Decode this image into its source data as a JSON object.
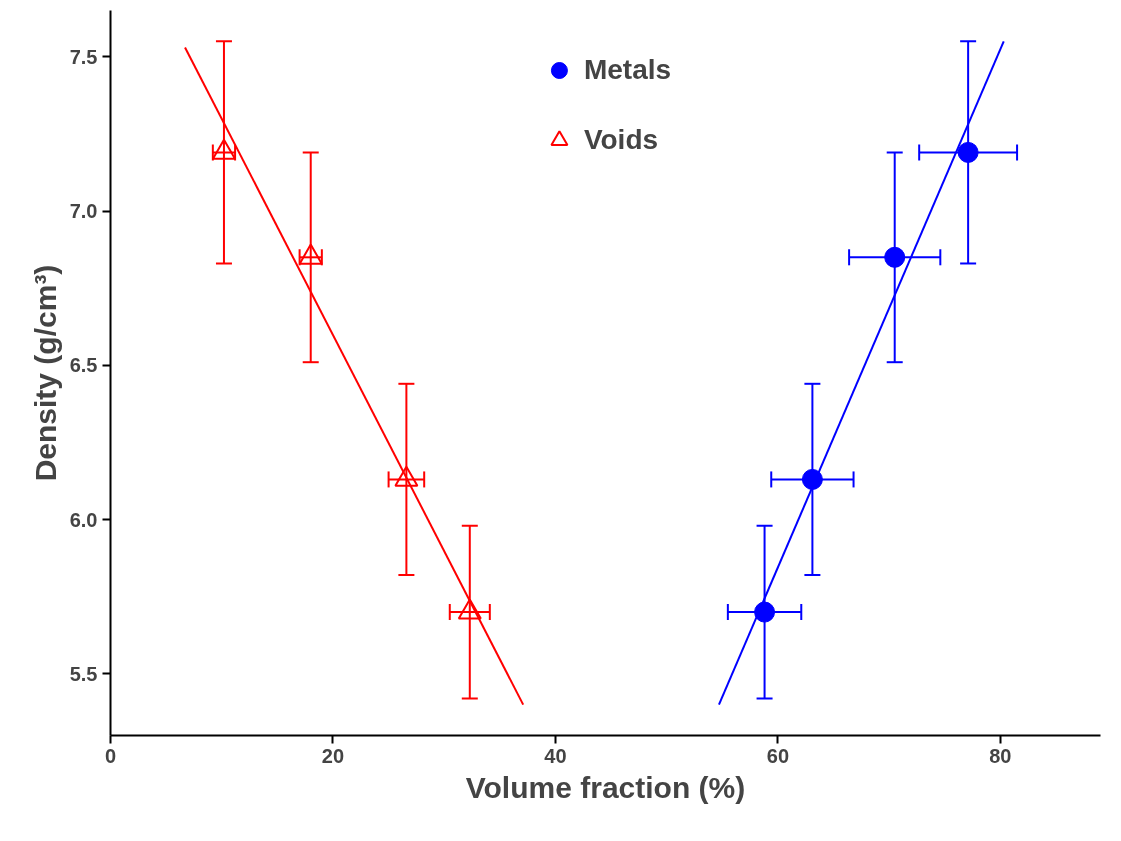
{
  "chart_data": {
    "type": "scatter",
    "xlabel": "Volume fraction (%)",
    "ylabel": "Density (g/cm³)",
    "xlim": [
      0,
      89
    ],
    "ylim": [
      5.3,
      7.65
    ],
    "xticks": [
      0,
      20,
      40,
      60,
      80
    ],
    "yticks": [
      5.5,
      {
        "value": 6,
        "label": "6.0"
      },
      6.5,
      {
        "value": 7,
        "label": "7.0"
      },
      7.5
    ],
    "grid": false,
    "legend": "top",
    "series": [
      {
        "name": "Metals",
        "color": "#0000ff",
        "marker": "circle",
        "x": [
          58.8,
          63.1,
          70.5,
          77.1
        ],
        "values": [
          5.7,
          6.13,
          6.85,
          7.19
        ],
        "errors": [
          0.28,
          0.31,
          0.34,
          0.36
        ],
        "xerrors": [
          3.3,
          3.7,
          4.1,
          4.4
        ]
      },
      {
        "name": "Voids",
        "color": "#ff0000",
        "marker": "triangle",
        "x": [
          10.2,
          18.0,
          26.6,
          32.3
        ],
        "values": [
          7.19,
          6.85,
          6.13,
          5.7
        ],
        "errors": [
          0.36,
          0.34,
          0.31,
          0.28
        ],
        "xerrors": [
          1.0,
          1.0,
          1.6,
          1.8
        ]
      },
      {
        "type": "line",
        "color": "#ff0000",
        "marker": "none",
        "x": [
          6.7,
          37.1
        ],
        "values": [
          7.53,
          5.4
        ]
      },
      {
        "type": "line",
        "color": "#0000ff",
        "marker": "none",
        "x": [
          54.7,
          80.3
        ],
        "values": [
          5.4,
          7.55
        ]
      }
    ]
  }
}
